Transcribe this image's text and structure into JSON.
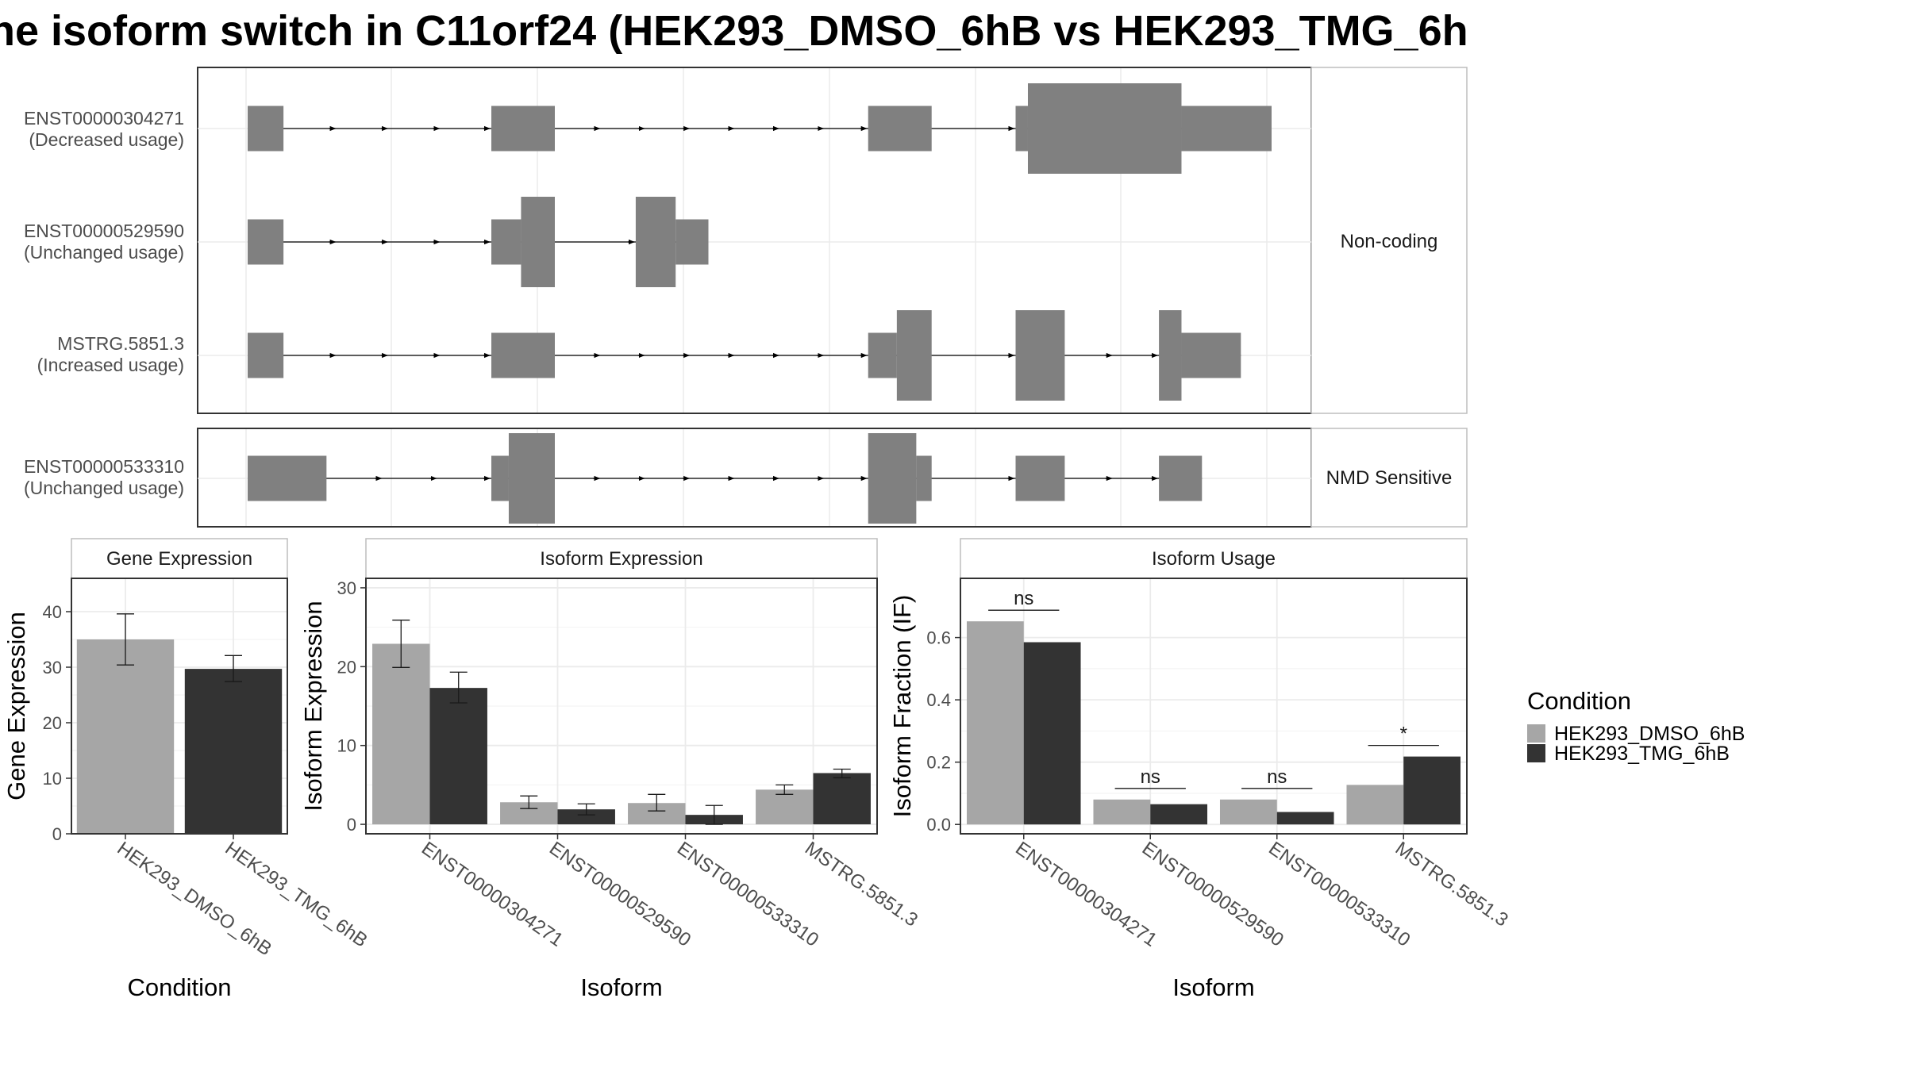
{
  "title": "ne isoform switch in C11orf24 (HEK293_DMSO_6hB vs HEK293_TMG_6h",
  "colors": {
    "exon": "#808080",
    "dmso": "#a6a6a6",
    "tmg": "#333333",
    "grid": "#ebebeb",
    "panel_border": "#333333",
    "strip_border": "#bdbdbd"
  },
  "transcripts": {
    "facets": [
      {
        "label": "Non-coding",
        "isoforms": [
          {
            "id": "ENST00000304271",
            "usage": "(Decreased usage)",
            "exons": [
              [
                0.0,
                0.035,
                "n"
              ],
              [
                0.238,
                0.3,
                "n"
              ],
              [
                0.606,
                0.668,
                "n"
              ],
              [
                0.75,
                0.762,
                "n"
              ],
              [
                0.762,
                0.912,
                "w"
              ],
              [
                0.912,
                1.0,
                "n"
              ]
            ]
          },
          {
            "id": "ENST00000529590",
            "usage": "(Unchanged usage)",
            "exons": [
              [
                0.0,
                0.035,
                "n"
              ],
              [
                0.238,
                0.267,
                "n"
              ],
              [
                0.267,
                0.3,
                "w"
              ],
              [
                0.379,
                0.418,
                "w"
              ],
              [
                0.418,
                0.45,
                "n"
              ]
            ]
          },
          {
            "id": "MSTRG.5851.3",
            "usage": "(Increased usage)",
            "exons": [
              [
                0.0,
                0.035,
                "n"
              ],
              [
                0.238,
                0.3,
                "n"
              ],
              [
                0.606,
                0.634,
                "n"
              ],
              [
                0.634,
                0.668,
                "w"
              ],
              [
                0.75,
                0.798,
                "w"
              ],
              [
                0.89,
                0.912,
                "w"
              ],
              [
                0.912,
                0.97,
                "n"
              ]
            ]
          }
        ]
      },
      {
        "label": "NMD Sensitive",
        "isoforms": [
          {
            "id": "ENST00000533310",
            "usage": "(Unchanged usage)",
            "exons": [
              [
                0.0,
                0.077,
                "n"
              ],
              [
                0.238,
                0.255,
                "n"
              ],
              [
                0.255,
                0.3,
                "w"
              ],
              [
                0.606,
                0.653,
                "w"
              ],
              [
                0.653,
                0.668,
                "n"
              ],
              [
                0.75,
                0.798,
                "n"
              ],
              [
                0.89,
                0.932,
                "n"
              ]
            ]
          }
        ]
      }
    ]
  },
  "chart_data": [
    {
      "type": "bar",
      "title": "Gene Expression",
      "xlabel": "Condition",
      "ylabel": "Gene Expression",
      "categories": [
        "HEK293_DMSO_6hB",
        "HEK293_TMG_6hB"
      ],
      "values": [
        35.0,
        29.7
      ],
      "errors": [
        [
          30.4,
          39.6
        ],
        [
          27.4,
          32.1
        ]
      ],
      "ylim": [
        0,
        46
      ],
      "yticks": [
        0,
        10,
        20,
        30,
        40
      ]
    },
    {
      "type": "bar",
      "title": "Isoform Expression",
      "xlabel": "Isoform",
      "ylabel": "Isoform Expression",
      "categories": [
        "ENST00000304271",
        "ENST00000529590",
        "ENST00000533310",
        "MSTRG.5851.3"
      ],
      "series": [
        {
          "name": "HEK293_DMSO_6hB",
          "values": [
            22.9,
            2.8,
            2.7,
            4.4
          ],
          "errors": [
            [
              19.9,
              25.9
            ],
            [
              2.0,
              3.6
            ],
            [
              1.7,
              3.8
            ],
            [
              3.8,
              5.0
            ]
          ]
        },
        {
          "name": "HEK293_TMG_6hB",
          "values": [
            17.3,
            1.9,
            1.2,
            6.5
          ],
          "errors": [
            [
              15.4,
              19.3
            ],
            [
              1.2,
              2.6
            ],
            [
              0.0,
              2.4
            ],
            [
              5.9,
              7.0
            ]
          ]
        }
      ],
      "ylim": [
        -1.2,
        31.2
      ],
      "yticks": [
        0,
        10,
        20,
        30
      ]
    },
    {
      "type": "bar",
      "title": "Isoform Usage",
      "xlabel": "Isoform",
      "ylabel": "Isoform Fraction (IF)",
      "categories": [
        "ENST00000304271",
        "ENST00000529590",
        "ENST00000533310",
        "MSTRG.5851.3"
      ],
      "series": [
        {
          "name": "HEK293_DMSO_6hB",
          "values": [
            0.652,
            0.08,
            0.08,
            0.127
          ]
        },
        {
          "name": "HEK293_TMG_6hB",
          "values": [
            0.585,
            0.065,
            0.04,
            0.218
          ]
        }
      ],
      "significance": [
        "ns",
        "ns",
        "ns",
        "*"
      ],
      "ylim": [
        -0.03,
        0.79
      ],
      "yticks": [
        "0.0",
        "0.2",
        "0.4",
        "0.6"
      ]
    }
  ],
  "legend": {
    "title": "Condition",
    "entries": [
      "HEK293_DMSO_6hB",
      "HEK293_TMG_6hB"
    ]
  }
}
